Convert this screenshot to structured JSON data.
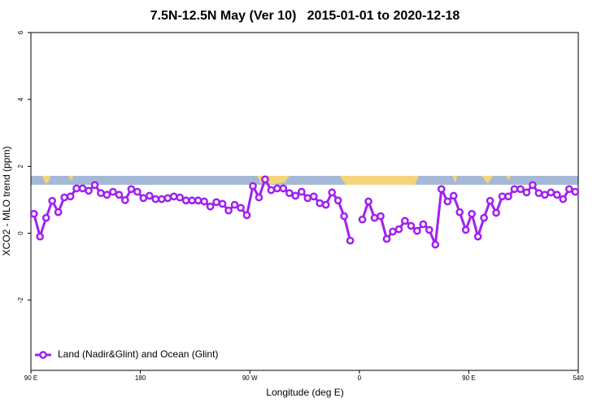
{
  "chart_data": {
    "type": "line",
    "title": "7.5N-12.5N May (Ver 10)   2015-01-01 to 2020-12-18",
    "xlabel": "Longitude (deg E)",
    "ylabel": "XCO2 - MLO trend (ppm)",
    "x": [
      92.5,
      97.5,
      102.5,
      107.5,
      112.5,
      117.5,
      122.5,
      127.5,
      132.5,
      137.5,
      142.5,
      147.5,
      152.5,
      157.5,
      162.5,
      167.5,
      172.5,
      177.5,
      182.5,
      187.5,
      192.5,
      197.5,
      202.5,
      207.5,
      212.5,
      217.5,
      222.5,
      227.5,
      232.5,
      237.5,
      242.5,
      247.5,
      252.5,
      257.5,
      262.5,
      267.5,
      272.5,
      277.5,
      282.5,
      287.5,
      292.5,
      297.5,
      302.5,
      307.5,
      312.5,
      317.5,
      322.5,
      327.5,
      332.5,
      337.5,
      342.5,
      347.5,
      352.5,
      357.5,
      362.5,
      367.5,
      372.5,
      377.5,
      382.5,
      387.5,
      392.5,
      397.5,
      402.5,
      407.5,
      412.5,
      417.5,
      422.5,
      427.5,
      432.5,
      437.5,
      442.5,
      447.5,
      452.5,
      457.5,
      462.5,
      467.5,
      472.5,
      477.5,
      482.5,
      487.5,
      492.5,
      497.5,
      502.5,
      507.5,
      512.5,
      517.5,
      522.5,
      527.5,
      532.5,
      537.5
    ],
    "series": [
      {
        "name": "Land (Nadir&Glint) and Ocean (Glint)",
        "color": "#a020f0",
        "values": [
          0.58,
          -0.1,
          0.46,
          0.97,
          0.63,
          1.07,
          1.1,
          1.34,
          1.34,
          1.27,
          1.44,
          1.2,
          1.15,
          1.24,
          1.15,
          0.99,
          1.32,
          1.24,
          1.05,
          1.12,
          1.02,
          1.02,
          1.05,
          1.1,
          1.07,
          0.98,
          0.98,
          0.98,
          0.95,
          0.8,
          0.93,
          0.88,
          0.68,
          0.85,
          0.76,
          0.54,
          1.41,
          1.07,
          1.61,
          1.29,
          1.34,
          1.34,
          1.2,
          1.12,
          1.24,
          1.05,
          1.1,
          0.9,
          0.85,
          1.22,
          0.98,
          0.51,
          -0.22,
          null,
          0.41,
          0.95,
          0.46,
          0.51,
          -0.17,
          0.05,
          0.12,
          0.37,
          0.22,
          0.07,
          0.27,
          0.1,
          -0.34,
          1.32,
          0.95,
          1.12,
          0.63,
          0.1,
          0.58,
          -0.1,
          0.46,
          0.97,
          0.61,
          1.1,
          1.1,
          1.32,
          1.32,
          1.22,
          1.44,
          1.2,
          1.15,
          1.22,
          1.15,
          1.02,
          1.32,
          1.24
        ]
      }
    ],
    "xlim": [
      90,
      540
    ],
    "xticks": [
      {
        "value": 90,
        "label": "90 E"
      },
      180,
      {
        "value": 270,
        "label": "90 W"
      },
      {
        "value": 360,
        "label": "0"
      },
      {
        "value": 450,
        "label": "90 E"
      },
      540
    ],
    "ylim": [
      -4.1,
      6
    ],
    "yticks": [
      -2,
      0,
      2,
      4,
      6
    ],
    "legend": "bottom-left"
  }
}
